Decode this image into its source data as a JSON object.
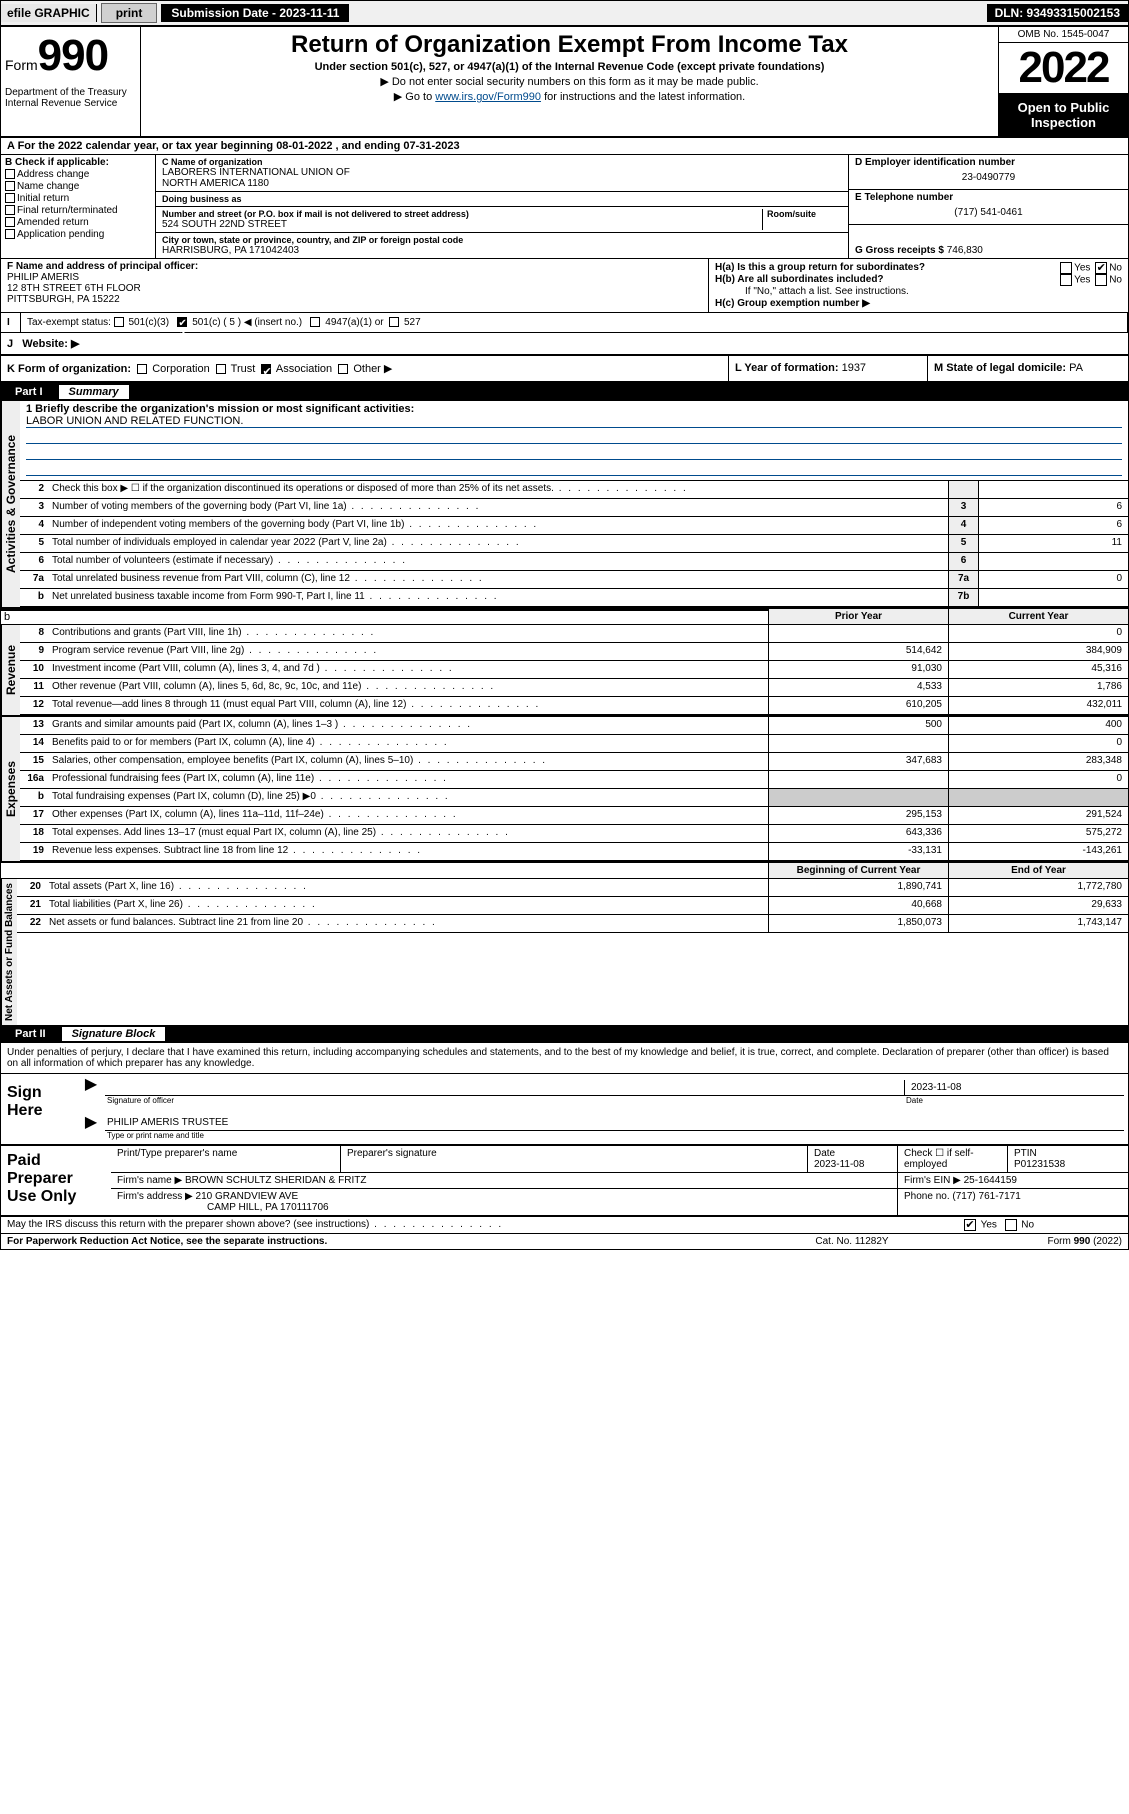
{
  "topbar": {
    "efile": "efile GRAPHIC",
    "print": "print",
    "subdate_label": "Submission Date - 2023-11-11",
    "dln": "DLN: 93493315002153"
  },
  "header": {
    "form_prefix": "Form",
    "form_num": "990",
    "title": "Return of Organization Exempt From Income Tax",
    "subtitle": "Under section 501(c), 527, or 4947(a)(1) of the Internal Revenue Code (except private foundations)",
    "note1": "▶ Do not enter social security numbers on this form as it may be made public.",
    "note2_pre": "▶ Go to ",
    "note2_link": "www.irs.gov/Form990",
    "note2_post": " for instructions and the latest information.",
    "dept": "Department of the Treasury\nInternal Revenue Service",
    "omb": "OMB No. 1545-0047",
    "year": "2022",
    "opentopublic": "Open to Public Inspection"
  },
  "row_a": "A For the 2022 calendar year, or tax year beginning 08-01-2022   , and ending 07-31-2023",
  "col_b": {
    "label": "B Check if applicable:",
    "opts": [
      "Address change",
      "Name change",
      "Initial return",
      "Final return/terminated",
      "Amended return",
      "Application pending"
    ]
  },
  "col_c": {
    "name_label": "C Name of organization",
    "name": "LABORERS INTERNATIONAL UNION OF\nNORTH AMERICA 1180",
    "dba_label": "Doing business as",
    "dba": "",
    "addr_label": "Number and street (or P.O. box if mail is not delivered to street address)",
    "room_label": "Room/suite",
    "addr": "524 SOUTH 22ND STREET",
    "city_label": "City or town, state or province, country, and ZIP or foreign postal code",
    "city": "HARRISBURG, PA  171042403"
  },
  "col_de": {
    "d_label": "D Employer identification number",
    "d_val": "23-0490779",
    "e_label": "E Telephone number",
    "e_val": "(717) 541-0461",
    "g_label": "G Gross receipts $",
    "g_val": "746,830"
  },
  "col_f": {
    "label": "F Name and address of principal officer:",
    "name": "PHILIP AMERIS",
    "addr1": "12 8TH STREET 6TH FLOOR",
    "addr2": "PITTSBURGH, PA  15222"
  },
  "col_h": {
    "ha": "H(a)  Is this a group return for subordinates?",
    "hb": "H(b)  Are all subordinates included?",
    "hb_note": "If \"No,\" attach a list. See instructions.",
    "hc": "H(c)  Group exemption number ▶",
    "yes": "Yes",
    "no": "No"
  },
  "row_i": {
    "label": "Tax-exempt status:",
    "o1": "501(c)(3)",
    "o2": "501(c) ( 5 ) ◀ (insert no.)",
    "o3": "4947(a)(1) or",
    "o4": "527"
  },
  "row_j": {
    "label": "Website: ▶"
  },
  "row_k": {
    "k_label": "K Form of organization:",
    "k_opts": [
      "Corporation",
      "Trust",
      "Association",
      "Other ▶"
    ],
    "l_label": "L Year of formation:",
    "l_val": "1937",
    "m_label": "M State of legal domicile:",
    "m_val": "PA"
  },
  "part1": {
    "num": "Part I",
    "title": "Summary"
  },
  "mission": {
    "q": "1  Briefly describe the organization's mission or most significant activities:",
    "text": "LABOR UNION AND RELATED FUNCTION."
  },
  "gov_lines": [
    {
      "n": "2",
      "d": "Check this box ▶ ☐  if the organization discontinued its operations or disposed of more than 25% of its net assets.",
      "box": "",
      "v": ""
    },
    {
      "n": "3",
      "d": "Number of voting members of the governing body (Part VI, line 1a)",
      "box": "3",
      "v": "6"
    },
    {
      "n": "4",
      "d": "Number of independent voting members of the governing body (Part VI, line 1b)",
      "box": "4",
      "v": "6"
    },
    {
      "n": "5",
      "d": "Total number of individuals employed in calendar year 2022 (Part V, line 2a)",
      "box": "5",
      "v": "11"
    },
    {
      "n": "6",
      "d": "Total number of volunteers (estimate if necessary)",
      "box": "6",
      "v": ""
    },
    {
      "n": "7a",
      "d": "Total unrelated business revenue from Part VIII, column (C), line 12",
      "box": "7a",
      "v": "0"
    },
    {
      "n": "b",
      "d": "Net unrelated business taxable income from Form 990-T, Part I, line 11",
      "box": "7b",
      "v": ""
    }
  ],
  "twocol_hdr": {
    "c1": "Prior Year",
    "c2": "Current Year"
  },
  "rev_lines": [
    {
      "n": "8",
      "d": "Contributions and grants (Part VIII, line 1h)",
      "v1": "",
      "v2": "0"
    },
    {
      "n": "9",
      "d": "Program service revenue (Part VIII, line 2g)",
      "v1": "514,642",
      "v2": "384,909"
    },
    {
      "n": "10",
      "d": "Investment income (Part VIII, column (A), lines 3, 4, and 7d )",
      "v1": "91,030",
      "v2": "45,316"
    },
    {
      "n": "11",
      "d": "Other revenue (Part VIII, column (A), lines 5, 6d, 8c, 9c, 10c, and 11e)",
      "v1": "4,533",
      "v2": "1,786"
    },
    {
      "n": "12",
      "d": "Total revenue—add lines 8 through 11 (must equal Part VIII, column (A), line 12)",
      "v1": "610,205",
      "v2": "432,011"
    }
  ],
  "exp_lines": [
    {
      "n": "13",
      "d": "Grants and similar amounts paid (Part IX, column (A), lines 1–3 )",
      "v1": "500",
      "v2": "400"
    },
    {
      "n": "14",
      "d": "Benefits paid to or for members (Part IX, column (A), line 4)",
      "v1": "",
      "v2": "0"
    },
    {
      "n": "15",
      "d": "Salaries, other compensation, employee benefits (Part IX, column (A), lines 5–10)",
      "v1": "347,683",
      "v2": "283,348"
    },
    {
      "n": "16a",
      "d": "Professional fundraising fees (Part IX, column (A), line 11e)",
      "v1": "",
      "v2": "0"
    },
    {
      "n": "b",
      "d": "Total fundraising expenses (Part IX, column (D), line 25) ▶0",
      "v1": "shade",
      "v2": "shade"
    },
    {
      "n": "17",
      "d": "Other expenses (Part IX, column (A), lines 11a–11d, 11f–24e)",
      "v1": "295,153",
      "v2": "291,524"
    },
    {
      "n": "18",
      "d": "Total expenses. Add lines 13–17 (must equal Part IX, column (A), line 25)",
      "v1": "643,336",
      "v2": "575,272"
    },
    {
      "n": "19",
      "d": "Revenue less expenses. Subtract line 18 from line 12",
      "v1": "-33,131",
      "v2": "-143,261"
    }
  ],
  "na_hdr": {
    "c1": "Beginning of Current Year",
    "c2": "End of Year"
  },
  "na_lines": [
    {
      "n": "20",
      "d": "Total assets (Part X, line 16)",
      "v1": "1,890,741",
      "v2": "1,772,780"
    },
    {
      "n": "21",
      "d": "Total liabilities (Part X, line 26)",
      "v1": "40,668",
      "v2": "29,633"
    },
    {
      "n": "22",
      "d": "Net assets or fund balances. Subtract line 21 from line 20",
      "v1": "1,850,073",
      "v2": "1,743,147"
    }
  ],
  "part2": {
    "num": "Part II",
    "title": "Signature Block"
  },
  "sig": {
    "intro": "Under penalties of perjury, I declare that I have examined this return, including accompanying schedules and statements, and to the best of my knowledge and belief, it is true, correct, and complete. Declaration of preparer (other than officer) is based on all information of which preparer has any knowledge.",
    "sign_here": "Sign Here",
    "sig_label": "Signature of officer",
    "date_label": "Date",
    "date_val": "2023-11-08",
    "name": "PHILIP AMERIS TRUSTEE",
    "name_label": "Type or print name and title"
  },
  "paid": {
    "label": "Paid Preparer Use Only",
    "h1": "Print/Type preparer's name",
    "h2": "Preparer's signature",
    "h3": "Date",
    "h4": "Check ☐ if self-employed",
    "h5": "PTIN",
    "date": "2023-11-08",
    "ptin": "P01231538",
    "firm_label": "Firm's name   ▶",
    "firm": "BROWN SCHULTZ SHERIDAN & FRITZ",
    "ein_label": "Firm's EIN ▶",
    "ein": "25-1644159",
    "addr_label": "Firm's address ▶",
    "addr1": "210 GRANDVIEW AVE",
    "addr2": "CAMP HILL, PA  170111706",
    "phone_label": "Phone no.",
    "phone": "(717) 761-7171"
  },
  "discuss": {
    "q": "May the IRS discuss this return with the preparer shown above? (see instructions)",
    "yes": "Yes",
    "no": "No"
  },
  "footer": {
    "l": "For Paperwork Reduction Act Notice, see the separate instructions.",
    "m": "Cat. No. 11282Y",
    "r": "Form 990 (2022)"
  },
  "vlabels": {
    "gov": "Activities & Governance",
    "rev": "Revenue",
    "exp": "Expenses",
    "na": "Net Assets or Fund Balances"
  }
}
